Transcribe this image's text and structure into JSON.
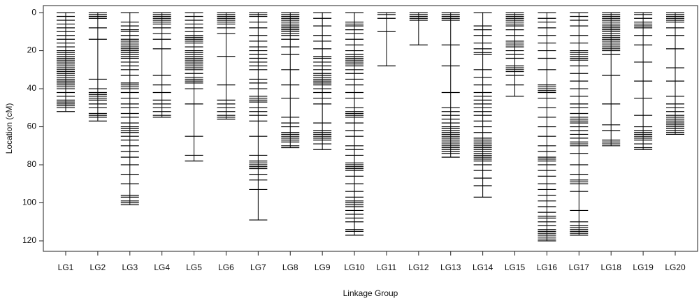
{
  "chart_data": {
    "type": "linkage-map",
    "x_label": "Linkage Group",
    "y_label": "Location (cM)",
    "ylim": [
      -3.7,
      125.5
    ],
    "y_inverted": true,
    "yticks": [
      0,
      20,
      40,
      60,
      80,
      100,
      120
    ],
    "color": "#000000",
    "groups": [
      {
        "name": "LG1",
        "markers": [
          0,
          2,
          4,
          6,
          8,
          10,
          12,
          14,
          16,
          18,
          20,
          21,
          22,
          23,
          24,
          25,
          26,
          27,
          28,
          29,
          30,
          31,
          32,
          33,
          34,
          35,
          36,
          37,
          38,
          39,
          40,
          42,
          44,
          46,
          47,
          48,
          49,
          50,
          52
        ]
      },
      {
        "name": "LG2",
        "markers": [
          0,
          1,
          2,
          3,
          8,
          14,
          35,
          40,
          42,
          43,
          44,
          45,
          46,
          48,
          50,
          53,
          54,
          55,
          57
        ]
      },
      {
        "name": "LG3",
        "markers": [
          0,
          5,
          7,
          9,
          10,
          12,
          14,
          15,
          16,
          17,
          18,
          19,
          20,
          21,
          22,
          23,
          24,
          26,
          28,
          30,
          33,
          37,
          38,
          39,
          40,
          42,
          45,
          48,
          50,
          53,
          55,
          58,
          60,
          61,
          62,
          63,
          65,
          67,
          70,
          73,
          76,
          80,
          85,
          90,
          96,
          97,
          99,
          100,
          101
        ]
      },
      {
        "name": "LG4",
        "markers": [
          0,
          1,
          2,
          3,
          4,
          5,
          6,
          8,
          11,
          14,
          19,
          33,
          38,
          42,
          46,
          48,
          50,
          52,
          54,
          55
        ]
      },
      {
        "name": "LG5",
        "markers": [
          0,
          2,
          4,
          6,
          8,
          10,
          12,
          13,
          14,
          15,
          16,
          18,
          20,
          21,
          22,
          23,
          24,
          25,
          26,
          27,
          28,
          29,
          30,
          32,
          34,
          35,
          36,
          37,
          40,
          48,
          65,
          75,
          78
        ]
      },
      {
        "name": "LG6",
        "markers": [
          0,
          1,
          2,
          3,
          4,
          5,
          6,
          8,
          11,
          23,
          38,
          46,
          48,
          50,
          52,
          54,
          55,
          56
        ]
      },
      {
        "name": "LG7",
        "markers": [
          0,
          1,
          2,
          5,
          8,
          12,
          15,
          18,
          20,
          22,
          24,
          26,
          28,
          30,
          35,
          37,
          40,
          44,
          45,
          46,
          47,
          50,
          52,
          54,
          57,
          65,
          75,
          78,
          79,
          80,
          81,
          82,
          85,
          88,
          93,
          109
        ]
      },
      {
        "name": "LG8",
        "markers": [
          0,
          1,
          2,
          3,
          4,
          5,
          6,
          7,
          8,
          9,
          10,
          11,
          12,
          14,
          18,
          22,
          30,
          38,
          45,
          55,
          58,
          60,
          63,
          64,
          65,
          66,
          67,
          68,
          70,
          71
        ]
      },
      {
        "name": "LG9",
        "markers": [
          0,
          3,
          7,
          12,
          15,
          19,
          23,
          24,
          26,
          28,
          30,
          32,
          33,
          34,
          35,
          36,
          37,
          38,
          40,
          42,
          45,
          48,
          58,
          62,
          63,
          64,
          65,
          66,
          67,
          69,
          72
        ]
      },
      {
        "name": "LG10",
        "markers": [
          0,
          5,
          6,
          7,
          9,
          11,
          14,
          17,
          20,
          22,
          23,
          24,
          25,
          26,
          27,
          28,
          30,
          32,
          35,
          38,
          42,
          45,
          50,
          52,
          53,
          54,
          55,
          58,
          62,
          65,
          70,
          72,
          75,
          79,
          80,
          81,
          82,
          83,
          86,
          90,
          94,
          97,
          99,
          100,
          101,
          102,
          104,
          106,
          108,
          110,
          114,
          115,
          117
        ]
      },
      {
        "name": "LG11",
        "markers": [
          0,
          1,
          3,
          10,
          28
        ]
      },
      {
        "name": "LG12",
        "markers": [
          0,
          1,
          2,
          3,
          4,
          17
        ]
      },
      {
        "name": "LG13",
        "markers": [
          0,
          1,
          2,
          3,
          4,
          17,
          28,
          42,
          50,
          52,
          54,
          56,
          58,
          60,
          61,
          62,
          63,
          64,
          65,
          66,
          67,
          68,
          69,
          70,
          71,
          72,
          73,
          74,
          76
        ]
      },
      {
        "name": "LG14",
        "markers": [
          0,
          7,
          9,
          12,
          16,
          19,
          21,
          22,
          30,
          34,
          38,
          42,
          44,
          46,
          48,
          50,
          52,
          54,
          57,
          60,
          63,
          66,
          67,
          68,
          69,
          70,
          71,
          72,
          73,
          74,
          75,
          76,
          77,
          78,
          80,
          83,
          87,
          91,
          97
        ]
      },
      {
        "name": "LG15",
        "markers": [
          0,
          1,
          2,
          3,
          4,
          5,
          6,
          7,
          9,
          12,
          15,
          16,
          17,
          18,
          20,
          22,
          24,
          28,
          29,
          30,
          31,
          33,
          38,
          44
        ]
      },
      {
        "name": "LG16",
        "markers": [
          0,
          3,
          5,
          8,
          12,
          16,
          20,
          24,
          30,
          38,
          39,
          40,
          41,
          42,
          45,
          50,
          55,
          60,
          65,
          70,
          73,
          76,
          77,
          78,
          80,
          83,
          86,
          90,
          93,
          96,
          99,
          102,
          105,
          107,
          108,
          110,
          112,
          114,
          115,
          116,
          117,
          118,
          119,
          120
        ]
      },
      {
        "name": "LG17",
        "markers": [
          0,
          2,
          4,
          7,
          12,
          16,
          20,
          21,
          22,
          23,
          24,
          25,
          28,
          32,
          36,
          40,
          44,
          48,
          50,
          53,
          55,
          56,
          57,
          58,
          60,
          62,
          64,
          66,
          68,
          69,
          70,
          74,
          80,
          85,
          88,
          89,
          90,
          94,
          104,
          110,
          112,
          113,
          114,
          115,
          116,
          117
        ]
      },
      {
        "name": "LG18",
        "markers": [
          0,
          1,
          2,
          3,
          4,
          5,
          6,
          7,
          8,
          9,
          10,
          11,
          12,
          13,
          14,
          15,
          16,
          17,
          18,
          19,
          20,
          22,
          33,
          48,
          59,
          62,
          67,
          68,
          69,
          70
        ]
      },
      {
        "name": "LG19",
        "markers": [
          0,
          1,
          3,
          5,
          6,
          7,
          8,
          12,
          17,
          26,
          36,
          45,
          54,
          60,
          62,
          63,
          64,
          65,
          66,
          67,
          69,
          71,
          72
        ]
      },
      {
        "name": "LG20",
        "markers": [
          0,
          1,
          2,
          3,
          4,
          5,
          8,
          12,
          19,
          29,
          36,
          44,
          48,
          50,
          52,
          54,
          55,
          56,
          57,
          58,
          59,
          60,
          61,
          62,
          63,
          64
        ]
      }
    ]
  }
}
